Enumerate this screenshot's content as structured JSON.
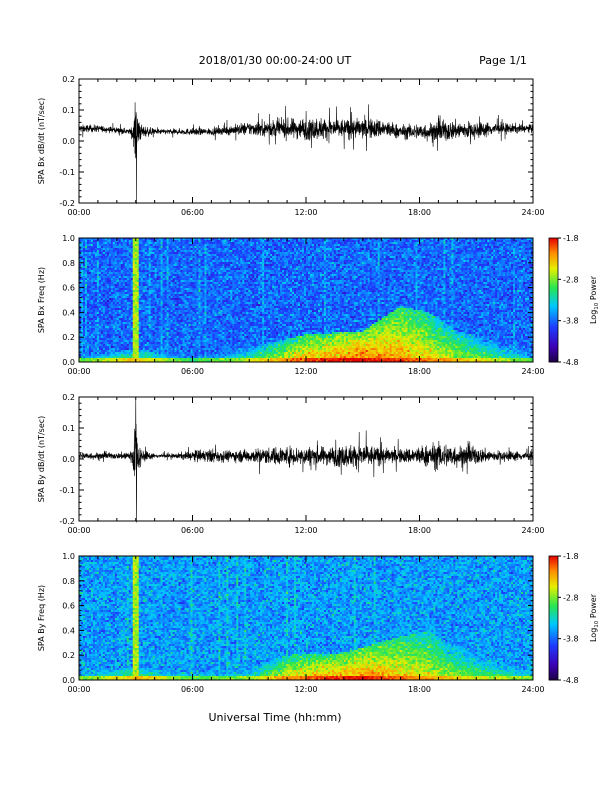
{
  "header": {
    "title": "2018/01/30  00:00-24:00 UT",
    "page": "Page 1/1"
  },
  "footer": {
    "xlabel": "Universal Time (hh:mm)"
  },
  "colors": {
    "trace": "#000000",
    "frame": "#000000"
  },
  "chart_data": [
    {
      "type": "line",
      "ylabel": "SPA Bx dB/dt (nT/sec)",
      "xlim": [
        0,
        24
      ],
      "ylim": [
        -0.2,
        0.2
      ],
      "xticks": [
        "00:00",
        "06:00",
        "12:00",
        "18:00",
        "24:00"
      ],
      "yticks": [
        "0.2",
        "0.1",
        "0.0",
        "-0.1",
        "-0.2"
      ],
      "series": [
        {
          "x": [
            0,
            1,
            2,
            2.7,
            3.0,
            3.3,
            4,
            5,
            6,
            7,
            8,
            9,
            10,
            11,
            12,
            13,
            14,
            15,
            16,
            17,
            18,
            19,
            20,
            21,
            22,
            23,
            24
          ],
          "y_baseline": [
            0.04,
            0.04,
            0.035,
            0.03,
            0.03,
            0.03,
            0.03,
            0.03,
            0.03,
            0.03,
            0.035,
            0.04,
            0.04,
            0.04,
            0.04,
            0.04,
            0.04,
            0.04,
            0.04,
            0.03,
            0.03,
            0.03,
            0.035,
            0.035,
            0.04,
            0.04,
            0.04
          ],
          "y_amplitude": [
            0.03,
            0.025,
            0.02,
            0.02,
            0.15,
            0.05,
            0.02,
            0.02,
            0.025,
            0.025,
            0.035,
            0.05,
            0.06,
            0.07,
            0.08,
            0.08,
            0.07,
            0.075,
            0.07,
            0.05,
            0.06,
            0.075,
            0.07,
            0.06,
            0.045,
            0.035,
            0.03
          ]
        }
      ]
    },
    {
      "type": "heatmap",
      "ylabel": "SPA Bx Freq (Hz)",
      "xlim": [
        0,
        24
      ],
      "ylim": [
        0,
        1.0
      ],
      "xticks": [
        "00:00",
        "06:00",
        "12:00",
        "18:00",
        "24:00"
      ],
      "yticks": [
        "1.0",
        "0.8",
        "0.6",
        "0.4",
        "0.2",
        "0.0"
      ],
      "colorbar": {
        "label": "Log10 Power",
        "label_base": "Log",
        "label_sub": "10",
        "label_rest": " Power",
        "range": [
          -4.8,
          -1.8
        ],
        "ticks": [
          "-1.8",
          "-2.8",
          "-3.8",
          "-4.8"
        ]
      },
      "features": {
        "background_level": -3.8,
        "low_freq_enhancement": [
          [
            0,
            -3.2
          ],
          [
            3,
            -2.6
          ],
          [
            6,
            -3.3
          ],
          [
            9,
            -2.9
          ],
          [
            12,
            -2.2
          ],
          [
            15,
            -2.0
          ],
          [
            17,
            -2.2
          ],
          [
            20,
            -2.6
          ],
          [
            24,
            -3.2
          ]
        ],
        "band_top_hz": [
          [
            0,
            0.05
          ],
          [
            3,
            0.1
          ],
          [
            6,
            0.05
          ],
          [
            9,
            0.12
          ],
          [
            12,
            0.22
          ],
          [
            15,
            0.25
          ],
          [
            17,
            0.45
          ],
          [
            18.5,
            0.4
          ],
          [
            20,
            0.25
          ],
          [
            24,
            0.1
          ]
        ],
        "impulse_times": [
          2.9,
          3.1
        ]
      }
    },
    {
      "type": "line",
      "ylabel": "SPA By dB/dt (nT/sec)",
      "xlim": [
        0,
        24
      ],
      "ylim": [
        -0.2,
        0.2
      ],
      "xticks": [
        "00:00",
        "06:00",
        "12:00",
        "18:00",
        "24:00"
      ],
      "yticks": [
        "0.2",
        "0.1",
        "0.0",
        "-0.1",
        "-0.2"
      ],
      "series": [
        {
          "x": [
            0,
            1,
            2,
            2.7,
            3.0,
            3.3,
            4,
            5,
            6,
            7,
            8,
            9,
            10,
            11,
            12,
            13,
            14,
            15,
            16,
            17,
            18,
            19,
            20,
            21,
            22,
            23,
            24
          ],
          "y_baseline": [
            0.01,
            0.01,
            0.01,
            0.01,
            0.01,
            0.01,
            0.01,
            0.01,
            0.01,
            0.01,
            0.01,
            0.01,
            0.01,
            0.01,
            0.01,
            0.01,
            0.01,
            0.01,
            0.01,
            0.01,
            0.01,
            0.01,
            0.01,
            0.01,
            0.01,
            0.01,
            0.01
          ],
          "y_amplitude": [
            0.03,
            0.025,
            0.02,
            0.04,
            0.2,
            0.05,
            0.015,
            0.015,
            0.04,
            0.05,
            0.04,
            0.05,
            0.06,
            0.07,
            0.07,
            0.065,
            0.08,
            0.09,
            0.06,
            0.05,
            0.07,
            0.1,
            0.08,
            0.06,
            0.04,
            0.035,
            0.03
          ]
        }
      ]
    },
    {
      "type": "heatmap",
      "ylabel": "SPA By Freq (Hz)",
      "xlim": [
        0,
        24
      ],
      "ylim": [
        0,
        1.0
      ],
      "xticks": [
        "00:00",
        "06:00",
        "12:00",
        "18:00",
        "24:00"
      ],
      "yticks": [
        "1.0",
        "0.8",
        "0.6",
        "0.4",
        "0.2",
        "0.0"
      ],
      "colorbar": {
        "label": "Log10 Power",
        "label_base": "Log",
        "label_sub": "10",
        "label_rest": " Power",
        "range": [
          -4.8,
          -1.8
        ],
        "ticks": [
          "-1.8",
          "-2.8",
          "-3.8",
          "-4.8"
        ]
      },
      "features": {
        "background_level": -3.6,
        "low_freq_enhancement": [
          [
            0,
            -3.1
          ],
          [
            3,
            -2.6
          ],
          [
            6,
            -3.2
          ],
          [
            9,
            -3.0
          ],
          [
            11,
            -2.4
          ],
          [
            13,
            -2.2
          ],
          [
            15,
            -2.1
          ],
          [
            17,
            -2.3
          ],
          [
            20,
            -2.7
          ],
          [
            24,
            -3.1
          ]
        ],
        "band_top_hz": [
          [
            0,
            0.06
          ],
          [
            3,
            0.1
          ],
          [
            6,
            0.06
          ],
          [
            9,
            0.1
          ],
          [
            11,
            0.2
          ],
          [
            14,
            0.22
          ],
          [
            17,
            0.35
          ],
          [
            18.5,
            0.4
          ],
          [
            20,
            0.25
          ],
          [
            24,
            0.1
          ]
        ],
        "impulse_times": [
          2.9,
          3.1
        ]
      }
    }
  ]
}
